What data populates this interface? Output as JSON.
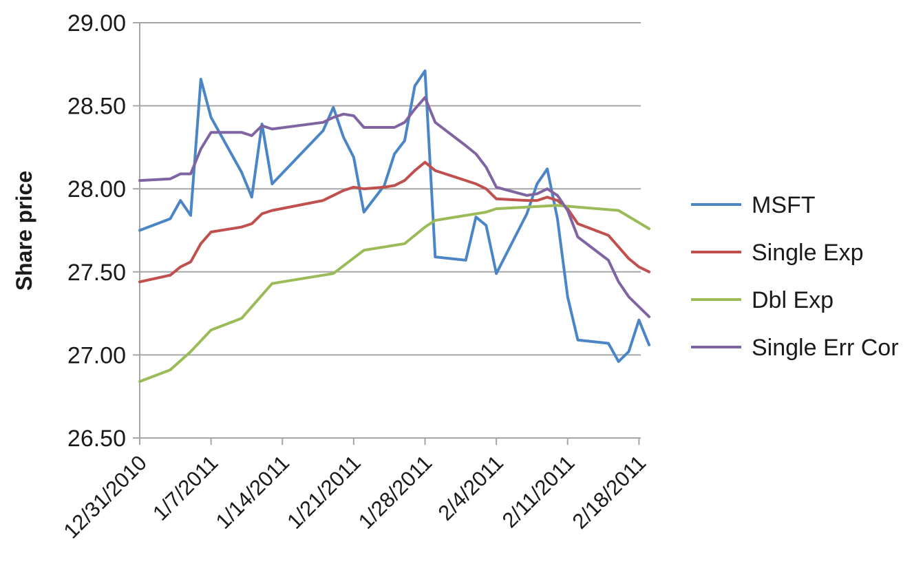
{
  "chart_data": {
    "type": "line",
    "title": "",
    "xlabel": "",
    "ylabel": "Share price",
    "ylim": [
      26.5,
      29.0
    ],
    "xlim": [
      "2010-12-31",
      "2011-02-18"
    ],
    "yticks": [
      "26.50",
      "27.00",
      "27.50",
      "28.00",
      "28.50",
      "29.00"
    ],
    "xticks": [
      {
        "label": "12/31/2010",
        "date": "2010-12-31"
      },
      {
        "label": "1/7/2011",
        "date": "2011-01-07"
      },
      {
        "label": "1/14/2011",
        "date": "2011-01-14"
      },
      {
        "label": "1/21/2011",
        "date": "2011-01-21"
      },
      {
        "label": "1/28/2011",
        "date": "2011-01-28"
      },
      {
        "label": "2/4/2011",
        "date": "2011-02-04"
      },
      {
        "label": "2/11/2011",
        "date": "2011-02-11"
      },
      {
        "label": "2/18/2011",
        "date": "2011-02-18"
      }
    ],
    "grid": {
      "horizontal": true,
      "vertical": false
    },
    "legend_position": "right",
    "series": [
      {
        "name": "MSFT",
        "color": "#4a86c5",
        "points": [
          [
            "2010-12-31",
            27.75
          ],
          [
            "2011-01-03",
            27.82
          ],
          [
            "2011-01-04",
            27.93
          ],
          [
            "2011-01-05",
            27.84
          ],
          [
            "2011-01-06",
            28.66
          ],
          [
            "2011-01-07",
            28.43
          ],
          [
            "2011-01-10",
            28.1
          ],
          [
            "2011-01-11",
            27.95
          ],
          [
            "2011-01-12",
            28.39
          ],
          [
            "2011-01-13",
            28.03
          ],
          [
            "2011-01-18",
            28.35
          ],
          [
            "2011-01-19",
            28.49
          ],
          [
            "2011-01-20",
            28.31
          ],
          [
            "2011-01-21",
            28.19
          ],
          [
            "2011-01-22",
            27.86
          ],
          [
            "2011-01-24",
            28.02
          ],
          [
            "2011-01-25",
            28.21
          ],
          [
            "2011-01-26",
            28.29
          ],
          [
            "2011-01-27",
            28.62
          ],
          [
            "2011-01-28",
            28.71
          ],
          [
            "2011-01-29",
            27.59
          ],
          [
            "2011-02-01",
            27.57
          ],
          [
            "2011-02-02",
            27.83
          ],
          [
            "2011-02-03",
            27.78
          ],
          [
            "2011-02-04",
            27.49
          ],
          [
            "2011-02-07",
            27.85
          ],
          [
            "2011-02-08",
            28.03
          ],
          [
            "2011-02-09",
            28.12
          ],
          [
            "2011-02-10",
            27.82
          ],
          [
            "2011-02-11",
            27.35
          ],
          [
            "2011-02-12",
            27.09
          ],
          [
            "2011-02-15",
            27.07
          ],
          [
            "2011-02-16",
            26.96
          ],
          [
            "2011-02-17",
            27.02
          ],
          [
            "2011-02-18",
            27.21
          ],
          [
            "2011-02-19",
            27.06
          ]
        ]
      },
      {
        "name": "Single Exp",
        "color": "#c0504d",
        "points": [
          [
            "2010-12-31",
            27.44
          ],
          [
            "2011-01-03",
            27.48
          ],
          [
            "2011-01-04",
            27.53
          ],
          [
            "2011-01-05",
            27.56
          ],
          [
            "2011-01-06",
            27.67
          ],
          [
            "2011-01-07",
            27.74
          ],
          [
            "2011-01-10",
            27.77
          ],
          [
            "2011-01-11",
            27.79
          ],
          [
            "2011-01-12",
            27.85
          ],
          [
            "2011-01-13",
            27.87
          ],
          [
            "2011-01-18",
            27.93
          ],
          [
            "2011-01-19",
            27.96
          ],
          [
            "2011-01-20",
            27.99
          ],
          [
            "2011-01-21",
            28.01
          ],
          [
            "2011-01-22",
            28.0
          ],
          [
            "2011-01-24",
            28.01
          ],
          [
            "2011-01-25",
            28.02
          ],
          [
            "2011-01-26",
            28.05
          ],
          [
            "2011-01-27",
            28.11
          ],
          [
            "2011-01-28",
            28.16
          ],
          [
            "2011-01-29",
            28.11
          ],
          [
            "2011-02-01",
            28.05
          ],
          [
            "2011-02-02",
            28.03
          ],
          [
            "2011-02-03",
            28.0
          ],
          [
            "2011-02-04",
            27.94
          ],
          [
            "2011-02-07",
            27.93
          ],
          [
            "2011-02-08",
            27.93
          ],
          [
            "2011-02-09",
            27.95
          ],
          [
            "2011-02-10",
            27.93
          ],
          [
            "2011-02-11",
            27.88
          ],
          [
            "2011-02-12",
            27.79
          ],
          [
            "2011-02-15",
            27.72
          ],
          [
            "2011-02-16",
            27.65
          ],
          [
            "2011-02-17",
            27.58
          ],
          [
            "2011-02-18",
            27.53
          ],
          [
            "2011-02-19",
            27.5
          ]
        ]
      },
      {
        "name": "Dbl Exp",
        "color": "#9bbb59",
        "points": [
          [
            "2010-12-31",
            26.84
          ],
          [
            "2011-01-03",
            26.91
          ],
          [
            "2011-01-05",
            27.02
          ],
          [
            "2011-01-07",
            27.15
          ],
          [
            "2011-01-10",
            27.22
          ],
          [
            "2011-01-13",
            27.43
          ],
          [
            "2011-01-19",
            27.49
          ],
          [
            "2011-01-22",
            27.63
          ],
          [
            "2011-01-26",
            27.67
          ],
          [
            "2011-01-28",
            27.77
          ],
          [
            "2011-01-29",
            27.81
          ],
          [
            "2011-02-03",
            27.86
          ],
          [
            "2011-02-04",
            27.88
          ],
          [
            "2011-02-10",
            27.9
          ],
          [
            "2011-02-12",
            27.89
          ],
          [
            "2011-02-16",
            27.87
          ],
          [
            "2011-02-19",
            27.76
          ]
        ]
      },
      {
        "name": "Single Err Cor",
        "color": "#8064a2",
        "points": [
          [
            "2010-12-31",
            28.05
          ],
          [
            "2011-01-03",
            28.06
          ],
          [
            "2011-01-04",
            28.09
          ],
          [
            "2011-01-05",
            28.09
          ],
          [
            "2011-01-06",
            28.24
          ],
          [
            "2011-01-07",
            28.34
          ],
          [
            "2011-01-10",
            28.34
          ],
          [
            "2011-01-11",
            28.32
          ],
          [
            "2011-01-12",
            28.38
          ],
          [
            "2011-01-13",
            28.36
          ],
          [
            "2011-01-18",
            28.4
          ],
          [
            "2011-01-19",
            28.43
          ],
          [
            "2011-01-20",
            28.45
          ],
          [
            "2011-01-21",
            28.44
          ],
          [
            "2011-01-22",
            28.37
          ],
          [
            "2011-01-24",
            28.37
          ],
          [
            "2011-01-25",
            28.37
          ],
          [
            "2011-01-26",
            28.4
          ],
          [
            "2011-01-27",
            28.48
          ],
          [
            "2011-01-28",
            28.55
          ],
          [
            "2011-01-29",
            28.4
          ],
          [
            "2011-02-01",
            28.26
          ],
          [
            "2011-02-02",
            28.21
          ],
          [
            "2011-02-03",
            28.13
          ],
          [
            "2011-02-04",
            28.01
          ],
          [
            "2011-02-07",
            27.96
          ],
          [
            "2011-02-08",
            27.97
          ],
          [
            "2011-02-09",
            28.0
          ],
          [
            "2011-02-10",
            27.96
          ],
          [
            "2011-02-11",
            27.87
          ],
          [
            "2011-02-12",
            27.71
          ],
          [
            "2011-02-15",
            27.57
          ],
          [
            "2011-02-16",
            27.44
          ],
          [
            "2011-02-17",
            27.35
          ],
          [
            "2011-02-18",
            27.29
          ],
          [
            "2011-02-19",
            27.23
          ]
        ]
      }
    ]
  }
}
